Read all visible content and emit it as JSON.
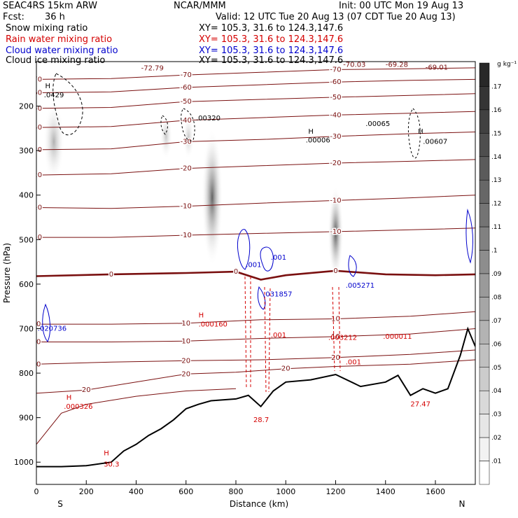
{
  "header": {
    "model": "SEAC4RS 15km ARW",
    "org": "NCAR/MMM",
    "init": "Init: 00 UTC Mon 19 Aug 13",
    "fcst_label": "Fcst:",
    "fcst_value": "36 h",
    "valid": "Valid: 12 UTC Tue 20 Aug 13 (07 CDT Tue 20 Aug 13)",
    "fields": [
      {
        "name": "Snow mixing ratio",
        "xy": "XY= 105.3, 31.6 to 124.3,147.6",
        "color": "#000000"
      },
      {
        "name": "Rain water mixing ratio",
        "xy": "XY= 105.3, 31.6 to 124.3,147.6",
        "color": "#d40000"
      },
      {
        "name": "Cloud water mixing ratio",
        "xy": "XY= 105.3, 31.6 to 124.3,147.6",
        "color": "#0000cc"
      },
      {
        "name": "Cloud ice mixing ratio",
        "xy": "XY= 105.3, 31.6 to 124.3,147.6",
        "color": "#000000"
      }
    ]
  },
  "colors": {
    "temperature": "#7a1010",
    "rain": "#d40000",
    "cloud_water": "#0000cc",
    "terrain": "#000000"
  },
  "chart_data": {
    "type": "cross-section",
    "xlabel": "Distance (km)",
    "ylabel": "Pressure (hPa)",
    "xlim": [
      0,
      1760
    ],
    "ylim": [
      1050,
      100
    ],
    "xticks": [
      0,
      200,
      400,
      600,
      800,
      1000,
      1200,
      1400,
      1600
    ],
    "yticks": [
      200,
      300,
      400,
      500,
      600,
      700,
      800,
      900,
      1000
    ],
    "endpoint_left": "S",
    "endpoint_right": "N",
    "colorbar": {
      "unit": "g kg⁻¹",
      "labels": [
        ".17",
        ".16",
        ".15",
        ".14",
        ".13",
        ".12",
        ".11",
        ".1",
        ".09",
        ".08",
        ".07",
        ".06",
        ".05",
        ".04",
        ".03",
        ".02",
        ".01"
      ]
    },
    "isotherms": [
      {
        "label": "-70",
        "points": [
          [
            0,
            140
          ],
          [
            300,
            138
          ],
          [
            600,
            130
          ],
          [
            900,
            124
          ],
          [
            1200,
            118
          ],
          [
            1500,
            116
          ],
          [
            1760,
            114
          ]
        ]
      },
      {
        "label": "-60",
        "points": [
          [
            0,
            170
          ],
          [
            300,
            168
          ],
          [
            600,
            158
          ],
          [
            900,
            152
          ],
          [
            1200,
            146
          ],
          [
            1500,
            142
          ],
          [
            1760,
            140
          ]
        ]
      },
      {
        "label": "-50",
        "points": [
          [
            0,
            205
          ],
          [
            300,
            203
          ],
          [
            600,
            190
          ],
          [
            900,
            185
          ],
          [
            1200,
            180
          ],
          [
            1500,
            176
          ],
          [
            1760,
            172
          ]
        ]
      },
      {
        "label": "-40",
        "points": [
          [
            0,
            248
          ],
          [
            300,
            246
          ],
          [
            600,
            232
          ],
          [
            900,
            226
          ],
          [
            1200,
            220
          ],
          [
            1500,
            216
          ],
          [
            1760,
            212
          ]
        ]
      },
      {
        "label": "-30",
        "points": [
          [
            0,
            298
          ],
          [
            300,
            296
          ],
          [
            600,
            280
          ],
          [
            900,
            275
          ],
          [
            1200,
            268
          ],
          [
            1500,
            262
          ],
          [
            1760,
            258
          ]
        ]
      },
      {
        "label": "-20",
        "points": [
          [
            0,
            355
          ],
          [
            300,
            352
          ],
          [
            600,
            340
          ],
          [
            900,
            334
          ],
          [
            1200,
            328
          ],
          [
            1500,
            324
          ],
          [
            1760,
            320
          ]
        ]
      },
      {
        "label": "-10",
        "points": [
          [
            0,
            428
          ],
          [
            300,
            430
          ],
          [
            600,
            425
          ],
          [
            900,
            418
          ],
          [
            1200,
            412
          ],
          [
            1500,
            406
          ],
          [
            1760,
            400
          ]
        ]
      },
      {
        "label": "-10",
        "points": [
          [
            0,
            495
          ],
          [
            300,
            495
          ],
          [
            600,
            490
          ],
          [
            900,
            486
          ],
          [
            1200,
            482
          ],
          [
            1500,
            478
          ],
          [
            1760,
            474
          ]
        ]
      },
      {
        "label": "0",
        "points": [
          [
            0,
            582
          ],
          [
            300,
            578
          ],
          [
            600,
            575
          ],
          [
            800,
            572
          ],
          [
            900,
            590
          ],
          [
            1000,
            580
          ],
          [
            1200,
            570
          ],
          [
            1400,
            578
          ],
          [
            1600,
            580
          ],
          [
            1760,
            578
          ]
        ]
      },
      {
        "label": "10",
        "points": [
          [
            0,
            690
          ],
          [
            300,
            690
          ],
          [
            600,
            688
          ],
          [
            900,
            680
          ],
          [
            1200,
            678
          ],
          [
            1500,
            672
          ],
          [
            1760,
            662
          ]
        ]
      },
      {
        "label": "10",
        "points": [
          [
            0,
            730
          ],
          [
            300,
            730
          ],
          [
            600,
            728
          ],
          [
            900,
            722
          ],
          [
            1200,
            718
          ],
          [
            1500,
            712
          ],
          [
            1760,
            700
          ]
        ]
      },
      {
        "label": "20",
        "points": [
          [
            0,
            780
          ],
          [
            300,
            775
          ],
          [
            600,
            772
          ],
          [
            900,
            770
          ],
          [
            1200,
            765
          ],
          [
            1500,
            758
          ],
          [
            1760,
            748
          ]
        ]
      },
      {
        "label": "20",
        "points": [
          [
            0,
            845
          ],
          [
            200,
            838
          ],
          [
            400,
            820
          ],
          [
            600,
            802
          ],
          [
            800,
            798
          ],
          [
            1000,
            790
          ],
          [
            1200,
            785
          ],
          [
            1500,
            780
          ],
          [
            1760,
            770
          ]
        ]
      },
      {
        "label": "",
        "points": [
          [
            0,
            960
          ],
          [
            100,
            890
          ],
          [
            200,
            870
          ],
          [
            400,
            852
          ],
          [
            600,
            840
          ],
          [
            800,
            835
          ]
        ]
      }
    ],
    "terrain": [
      [
        0,
        1010
      ],
      [
        100,
        1010
      ],
      [
        200,
        1008
      ],
      [
        300,
        1000
      ],
      [
        350,
        975
      ],
      [
        400,
        960
      ],
      [
        450,
        940
      ],
      [
        500,
        925
      ],
      [
        550,
        905
      ],
      [
        600,
        880
      ],
      [
        650,
        870
      ],
      [
        700,
        862
      ],
      [
        800,
        858
      ],
      [
        850,
        850
      ],
      [
        900,
        875
      ],
      [
        950,
        840
      ],
      [
        1000,
        820
      ],
      [
        1100,
        815
      ],
      [
        1200,
        803
      ],
      [
        1300,
        830
      ],
      [
        1400,
        820
      ],
      [
        1450,
        805
      ],
      [
        1500,
        850
      ],
      [
        1550,
        835
      ],
      [
        1600,
        845
      ],
      [
        1650,
        835
      ],
      [
        1700,
        760
      ],
      [
        1730,
        700
      ],
      [
        1760,
        740
      ]
    ],
    "annotations": [
      {
        "text": "-72.79",
        "x": 420,
        "p": 120,
        "color": "#7a1010"
      },
      {
        "text": "-70.03",
        "x": 1230,
        "p": 112,
        "color": "#7a1010"
      },
      {
        "text": "-69.28",
        "x": 1400,
        "p": 112,
        "color": "#7a1010"
      },
      {
        "text": "-69.01",
        "x": 1560,
        "p": 118,
        "color": "#7a1010"
      },
      {
        "text": ".0429",
        "x": 30,
        "p": 180,
        "color": "#000000"
      },
      {
        "text": "H",
        "x": 35,
        "p": 160,
        "color": "#000000"
      },
      {
        "text": ".00320",
        "x": 640,
        "p": 232,
        "color": "#000000"
      },
      {
        "text": ".00065",
        "x": 1320,
        "p": 245,
        "color": "#000000"
      },
      {
        "text": ".00006",
        "x": 1080,
        "p": 282,
        "color": "#000000"
      },
      {
        "text": "H",
        "x": 1090,
        "p": 262,
        "color": "#000000"
      },
      {
        "text": ".00607",
        "x": 1550,
        "p": 285,
        "color": "#000000"
      },
      {
        "text": "H",
        "x": 1530,
        "p": 262,
        "color": "#000000"
      },
      {
        "text": ".001",
        "x": 840,
        "p": 562,
        "color": "#0000cc"
      },
      {
        "text": ".001",
        "x": 940,
        "p": 545,
        "color": "#0000cc"
      },
      {
        "text": ".031857",
        "x": 910,
        "p": 628,
        "color": "#0000cc"
      },
      {
        "text": ".005271",
        "x": 1240,
        "p": 608,
        "color": "#0000cc"
      },
      {
        "text": ".020736",
        "x": 5,
        "p": 705,
        "color": "#0000cc"
      },
      {
        "text": ".000160",
        "x": 650,
        "p": 695,
        "color": "#d40000"
      },
      {
        "text": "H",
        "x": 650,
        "p": 675,
        "color": "#d40000"
      },
      {
        "text": ".003212",
        "x": 1170,
        "p": 725,
        "color": "#d40000"
      },
      {
        "text": ".000011",
        "x": 1390,
        "p": 723,
        "color": "#d40000"
      },
      {
        "text": ".001",
        "x": 940,
        "p": 720,
        "color": "#d40000"
      },
      {
        "text": ".001",
        "x": 1240,
        "p": 780,
        "color": "#d40000"
      },
      {
        "text": ".000326",
        "x": 110,
        "p": 880,
        "color": "#d40000"
      },
      {
        "text": "H",
        "x": 120,
        "p": 860,
        "color": "#d40000"
      },
      {
        "text": "28.7",
        "x": 870,
        "p": 910,
        "color": "#d40000"
      },
      {
        "text": "27.47",
        "x": 1500,
        "p": 875,
        "color": "#d40000"
      },
      {
        "text": "30.3",
        "x": 270,
        "p": 1010,
        "color": "#d40000"
      },
      {
        "text": "H",
        "x": 270,
        "p": 985,
        "color": "#d40000"
      }
    ],
    "shading": [
      {
        "x": 70,
        "p_top": 190,
        "p_bot": 370,
        "w": 30,
        "max": 0.07
      },
      {
        "x": 520,
        "p_top": 215,
        "p_bot": 320,
        "w": 18,
        "max": 0.05
      },
      {
        "x": 610,
        "p_top": 220,
        "p_bot": 320,
        "w": 16,
        "max": 0.05
      },
      {
        "x": 705,
        "p_top": 250,
        "p_bot": 560,
        "w": 30,
        "max": 0.14
      },
      {
        "x": 1200,
        "p_top": 380,
        "p_bot": 590,
        "w": 22,
        "max": 0.15
      }
    ]
  }
}
